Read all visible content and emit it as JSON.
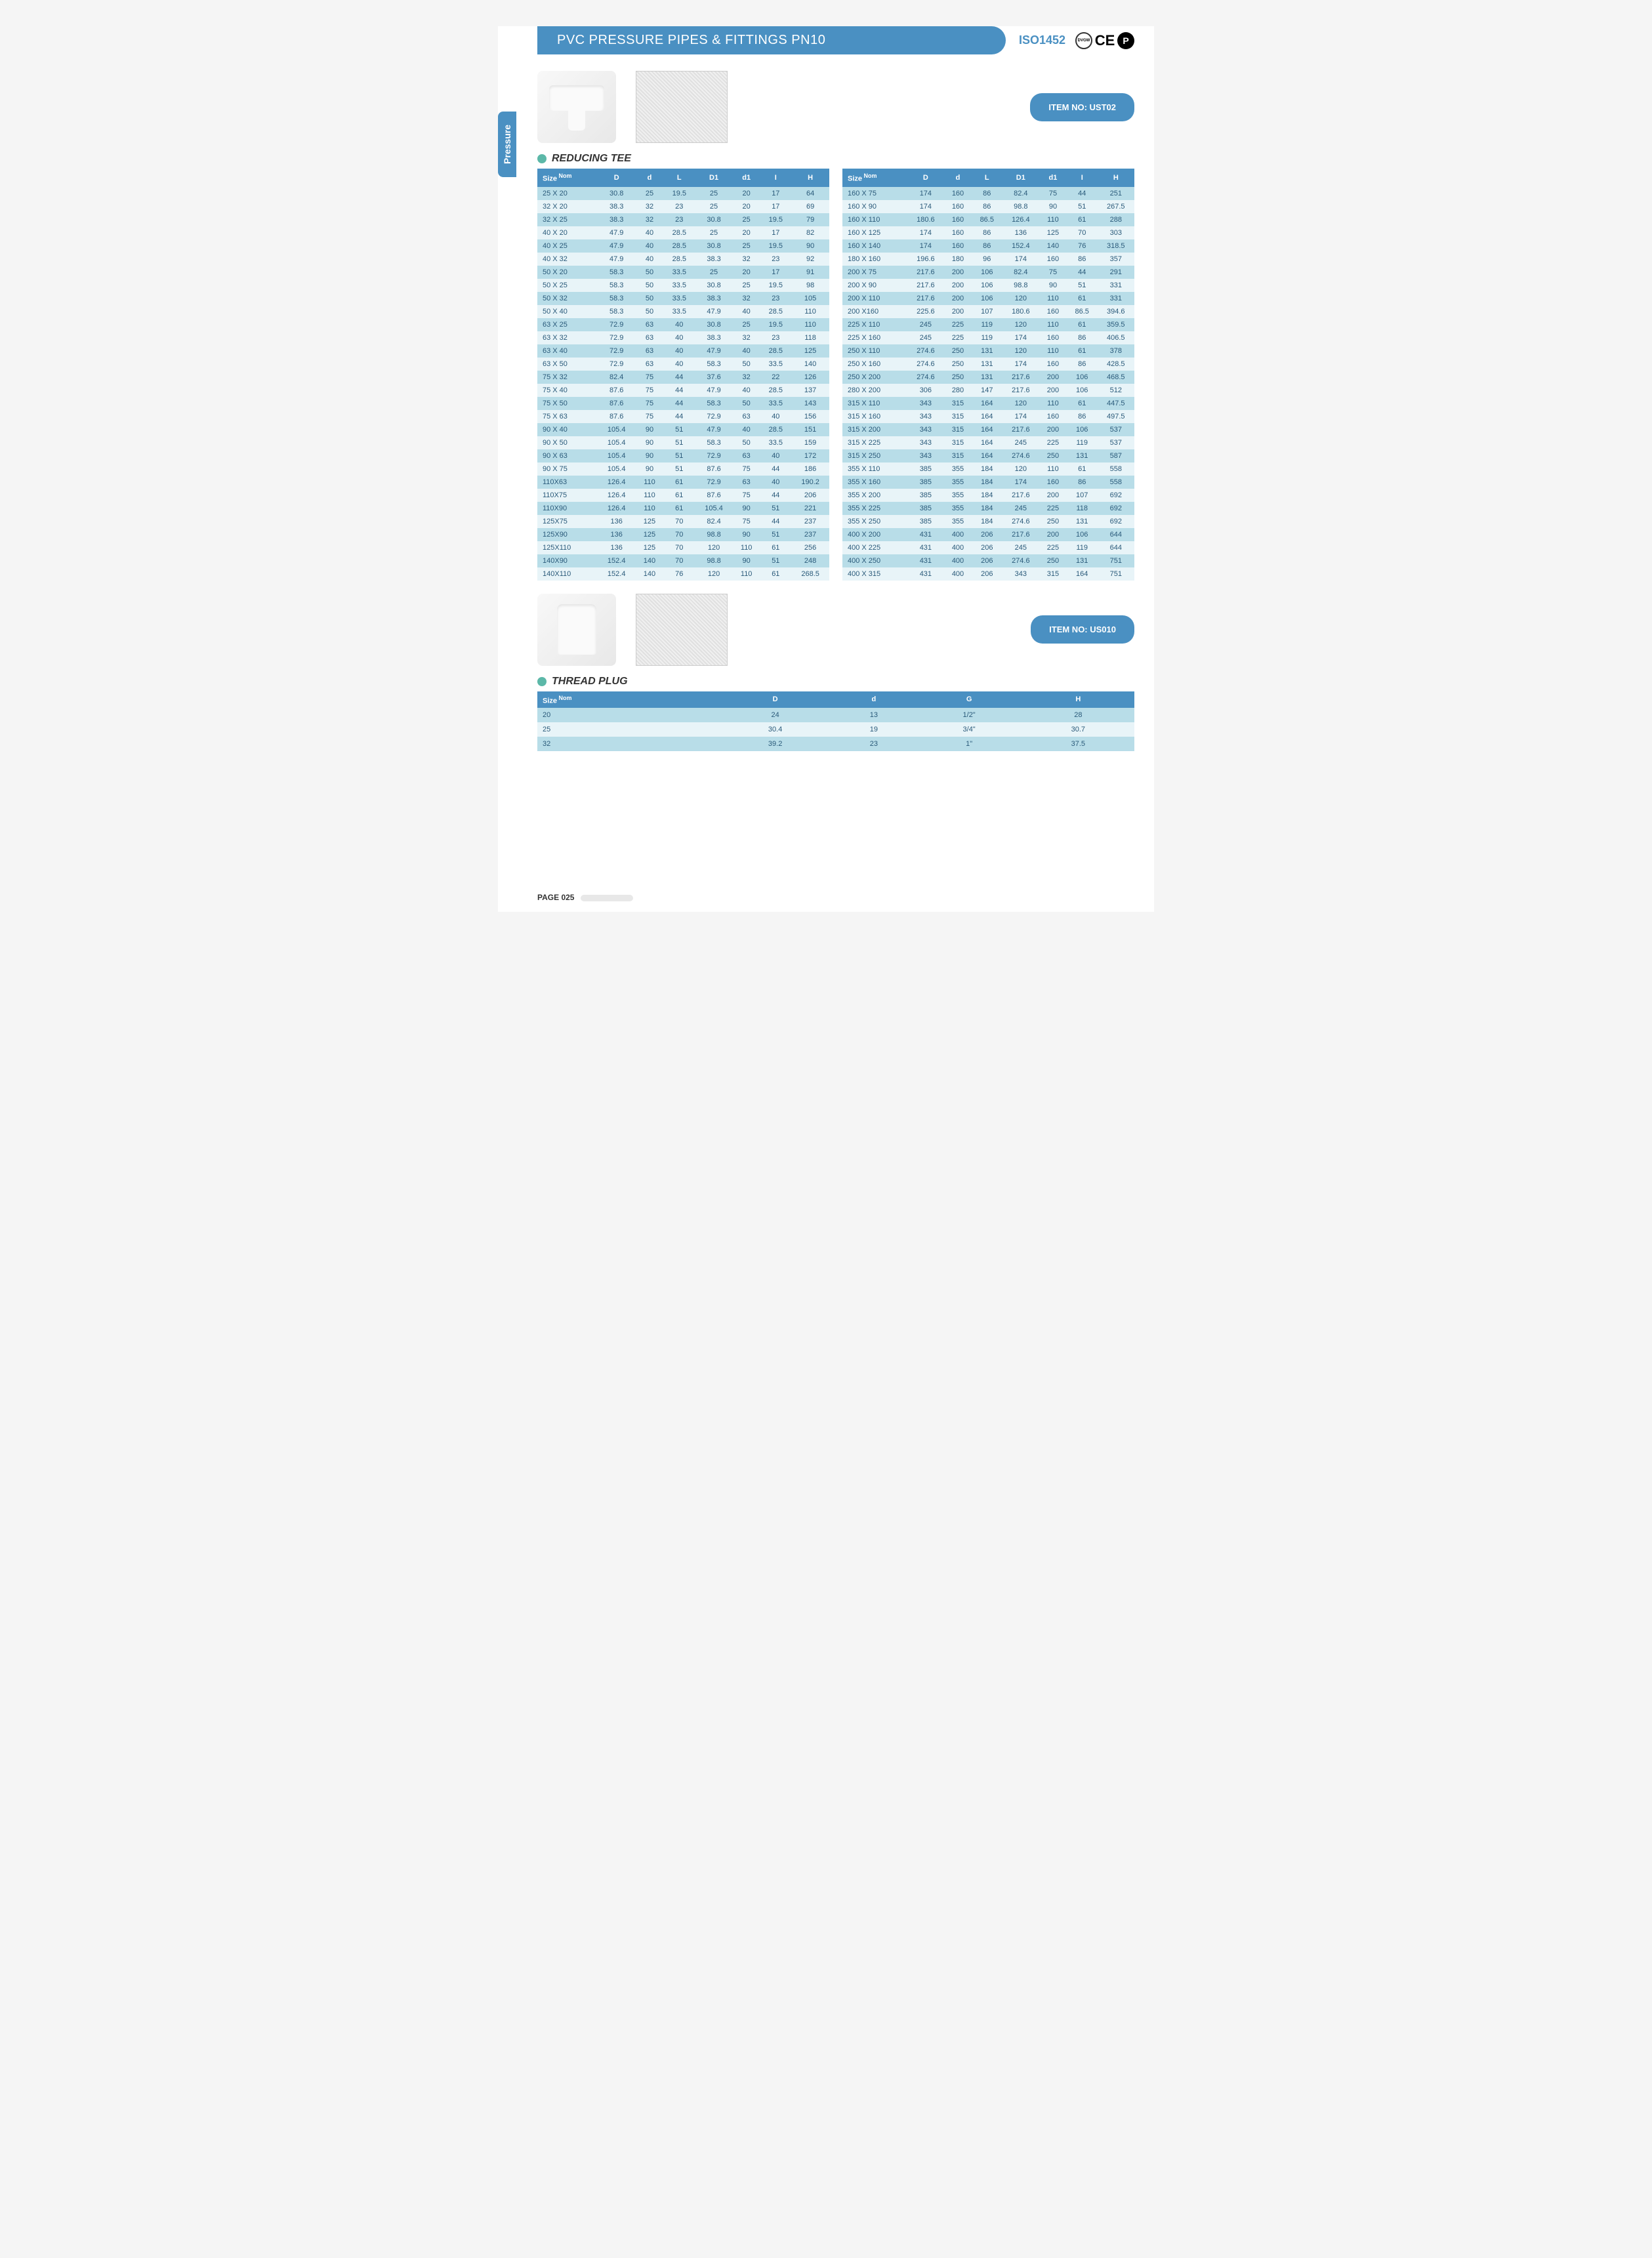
{
  "header": {
    "title": "PVC PRESSURE PIPES & FITTINGS PN10",
    "iso": "ISO1452"
  },
  "sideTab": "Pressure",
  "item1": {
    "badge": "ITEM NO: UST02",
    "section": "REDUCING TEE"
  },
  "item2": {
    "badge": "ITEM NO: US010",
    "section": "THREAD PLUG"
  },
  "pageNum": "PAGE 025",
  "colors": {
    "primary": "#4a90c2",
    "accent": "#5cb8a8",
    "row0": "#b8dde8",
    "row1": "#e8f4f8",
    "text": "#2a5a7a"
  },
  "tee": {
    "headers": [
      "Size",
      "D",
      "d",
      "L",
      "D1",
      "d1",
      "I",
      "H"
    ],
    "left": [
      [
        "25 X 20",
        "30.8",
        "25",
        "19.5",
        "25",
        "20",
        "17",
        "64"
      ],
      [
        "32 X 20",
        "38.3",
        "32",
        "23",
        "25",
        "20",
        "17",
        "69"
      ],
      [
        "32 X 25",
        "38.3",
        "32",
        "23",
        "30.8",
        "25",
        "19.5",
        "79"
      ],
      [
        "40 X 20",
        "47.9",
        "40",
        "28.5",
        "25",
        "20",
        "17",
        "82"
      ],
      [
        "40 X 25",
        "47.9",
        "40",
        "28.5",
        "30.8",
        "25",
        "19.5",
        "90"
      ],
      [
        "40 X 32",
        "47.9",
        "40",
        "28.5",
        "38.3",
        "32",
        "23",
        "92"
      ],
      [
        "50 X 20",
        "58.3",
        "50",
        "33.5",
        "25",
        "20",
        "17",
        "91"
      ],
      [
        "50 X 25",
        "58.3",
        "50",
        "33.5",
        "30.8",
        "25",
        "19.5",
        "98"
      ],
      [
        "50 X 32",
        "58.3",
        "50",
        "33.5",
        "38.3",
        "32",
        "23",
        "105"
      ],
      [
        "50 X 40",
        "58.3",
        "50",
        "33.5",
        "47.9",
        "40",
        "28.5",
        "110"
      ],
      [
        "63 X 25",
        "72.9",
        "63",
        "40",
        "30.8",
        "25",
        "19.5",
        "110"
      ],
      [
        "63 X 32",
        "72.9",
        "63",
        "40",
        "38.3",
        "32",
        "23",
        "118"
      ],
      [
        "63 X 40",
        "72.9",
        "63",
        "40",
        "47.9",
        "40",
        "28.5",
        "125"
      ],
      [
        "63 X 50",
        "72.9",
        "63",
        "40",
        "58.3",
        "50",
        "33.5",
        "140"
      ],
      [
        "75 X 32",
        "82.4",
        "75",
        "44",
        "37.6",
        "32",
        "22",
        "126"
      ],
      [
        "75 X 40",
        "87.6",
        "75",
        "44",
        "47.9",
        "40",
        "28.5",
        "137"
      ],
      [
        "75 X 50",
        "87.6",
        "75",
        "44",
        "58.3",
        "50",
        "33.5",
        "143"
      ],
      [
        "75 X 63",
        "87.6",
        "75",
        "44",
        "72.9",
        "63",
        "40",
        "156"
      ],
      [
        "90 X 40",
        "105.4",
        "90",
        "51",
        "47.9",
        "40",
        "28.5",
        "151"
      ],
      [
        "90 X 50",
        "105.4",
        "90",
        "51",
        "58.3",
        "50",
        "33.5",
        "159"
      ],
      [
        "90 X 63",
        "105.4",
        "90",
        "51",
        "72.9",
        "63",
        "40",
        "172"
      ],
      [
        "90 X 75",
        "105.4",
        "90",
        "51",
        "87.6",
        "75",
        "44",
        "186"
      ],
      [
        "110X63",
        "126.4",
        "110",
        "61",
        "72.9",
        "63",
        "40",
        "190.2"
      ],
      [
        "110X75",
        "126.4",
        "110",
        "61",
        "87.6",
        "75",
        "44",
        "206"
      ],
      [
        "110X90",
        "126.4",
        "110",
        "61",
        "105.4",
        "90",
        "51",
        "221"
      ],
      [
        "125X75",
        "136",
        "125",
        "70",
        "82.4",
        "75",
        "44",
        "237"
      ],
      [
        "125X90",
        "136",
        "125",
        "70",
        "98.8",
        "90",
        "51",
        "237"
      ],
      [
        "125X110",
        "136",
        "125",
        "70",
        "120",
        "110",
        "61",
        "256"
      ],
      [
        "140X90",
        "152.4",
        "140",
        "70",
        "98.8",
        "90",
        "51",
        "248"
      ],
      [
        "140X110",
        "152.4",
        "140",
        "76",
        "120",
        "110",
        "61",
        "268.5"
      ]
    ],
    "right": [
      [
        "160 X 75",
        "174",
        "160",
        "86",
        "82.4",
        "75",
        "44",
        "251"
      ],
      [
        "160 X 90",
        "174",
        "160",
        "86",
        "98.8",
        "90",
        "51",
        "267.5"
      ],
      [
        "160 X 110",
        "180.6",
        "160",
        "86.5",
        "126.4",
        "110",
        "61",
        "288"
      ],
      [
        "160 X 125",
        "174",
        "160",
        "86",
        "136",
        "125",
        "70",
        "303"
      ],
      [
        "160 X 140",
        "174",
        "160",
        "86",
        "152.4",
        "140",
        "76",
        "318.5"
      ],
      [
        "180 X 160",
        "196.6",
        "180",
        "96",
        "174",
        "160",
        "86",
        "357"
      ],
      [
        "200 X 75",
        "217.6",
        "200",
        "106",
        "82.4",
        "75",
        "44",
        "291"
      ],
      [
        "200 X 90",
        "217.6",
        "200",
        "106",
        "98.8",
        "90",
        "51",
        "331"
      ],
      [
        "200 X 110",
        "217.6",
        "200",
        "106",
        "120",
        "110",
        "61",
        "331"
      ],
      [
        "200 X160",
        "225.6",
        "200",
        "107",
        "180.6",
        "160",
        "86.5",
        "394.6"
      ],
      [
        "225 X 110",
        "245",
        "225",
        "119",
        "120",
        "110",
        "61",
        "359.5"
      ],
      [
        "225 X 160",
        "245",
        "225",
        "119",
        "174",
        "160",
        "86",
        "406.5"
      ],
      [
        "250 X 110",
        "274.6",
        "250",
        "131",
        "120",
        "110",
        "61",
        "378"
      ],
      [
        "250 X 160",
        "274.6",
        "250",
        "131",
        "174",
        "160",
        "86",
        "428.5"
      ],
      [
        "250 X 200",
        "274.6",
        "250",
        "131",
        "217.6",
        "200",
        "106",
        "468.5"
      ],
      [
        "280 X 200",
        "306",
        "280",
        "147",
        "217.6",
        "200",
        "106",
        "512"
      ],
      [
        "315 X 110",
        "343",
        "315",
        "164",
        "120",
        "110",
        "61",
        "447.5"
      ],
      [
        "315 X 160",
        "343",
        "315",
        "164",
        "174",
        "160",
        "86",
        "497.5"
      ],
      [
        "315 X 200",
        "343",
        "315",
        "164",
        "217.6",
        "200",
        "106",
        "537"
      ],
      [
        "315 X 225",
        "343",
        "315",
        "164",
        "245",
        "225",
        "119",
        "537"
      ],
      [
        "315 X 250",
        "343",
        "315",
        "164",
        "274.6",
        "250",
        "131",
        "587"
      ],
      [
        "355 X 110",
        "385",
        "355",
        "184",
        "120",
        "110",
        "61",
        "558"
      ],
      [
        "355 X 160",
        "385",
        "355",
        "184",
        "174",
        "160",
        "86",
        "558"
      ],
      [
        "355 X 200",
        "385",
        "355",
        "184",
        "217.6",
        "200",
        "107",
        "692"
      ],
      [
        "355 X 225",
        "385",
        "355",
        "184",
        "245",
        "225",
        "118",
        "692"
      ],
      [
        "355 X 250",
        "385",
        "355",
        "184",
        "274.6",
        "250",
        "131",
        "692"
      ],
      [
        "400 X 200",
        "431",
        "400",
        "206",
        "217.6",
        "200",
        "106",
        "644"
      ],
      [
        "400 X 225",
        "431",
        "400",
        "206",
        "245",
        "225",
        "119",
        "644"
      ],
      [
        "400 X 250",
        "431",
        "400",
        "206",
        "274.6",
        "250",
        "131",
        "751"
      ],
      [
        "400 X 315",
        "431",
        "400",
        "206",
        "343",
        "315",
        "164",
        "751"
      ]
    ]
  },
  "plug": {
    "headers": [
      "Size",
      "D",
      "d",
      "G",
      "H"
    ],
    "rows": [
      [
        "20",
        "24",
        "13",
        "1/2\"",
        "28"
      ],
      [
        "25",
        "30.4",
        "19",
        "3/4\"",
        "30.7"
      ],
      [
        "32",
        "39.2",
        "23",
        "1\"",
        "37.5"
      ]
    ]
  }
}
